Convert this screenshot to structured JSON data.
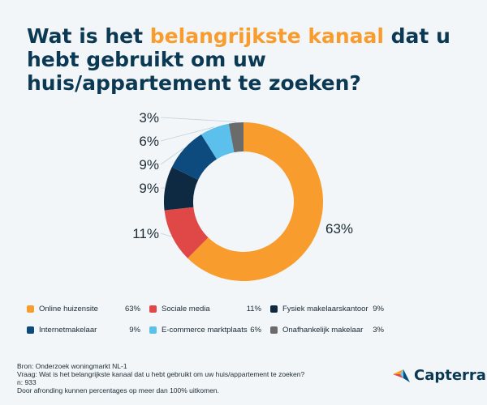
{
  "title": {
    "pre": "Wat is het ",
    "highlight": "belangrijkste kanaal",
    "post": " dat u hebt gebruikt om uw huis/appartement te zoeken?"
  },
  "colors": {
    "title": "#0b3954",
    "highlight": "#f89c2e",
    "label": "#1c2b36",
    "background": "#f2f6f8"
  },
  "chart_data": {
    "type": "pie",
    "donut": true,
    "title": "Wat is het belangrijkste kanaal dat u hebt gebruikt om uw huis/appartement te zoeken?",
    "categories": [
      "Online huizensite",
      "Sociale media",
      "Fysiek makelaarskantoor",
      "Internetmakelaar",
      "E-commerce marktplaats",
      "Onafhankelijk makelaar"
    ],
    "values": [
      63,
      11,
      9,
      9,
      6,
      3
    ],
    "labels": [
      "63%",
      "11%",
      "9%",
      "9%",
      "6%",
      "3%"
    ],
    "colors": [
      "#f89c2e",
      "#e04848",
      "#0e2a42",
      "#0d4a7e",
      "#5bc0eb",
      "#6b6b6b"
    ]
  },
  "legend": {
    "items": [
      {
        "label": "Online huizensite",
        "value": "63%",
        "color": "#f89c2e"
      },
      {
        "label": "Sociale media",
        "value": "11%",
        "color": "#e04848"
      },
      {
        "label": "Fysiek makelaarskantoor",
        "value": "9%",
        "color": "#0e2a42"
      },
      {
        "label": "Internetmakelaar",
        "value": "9%",
        "color": "#0d4a7e"
      },
      {
        "label": "E-commerce marktplaats",
        "value": "6%",
        "color": "#5bc0eb"
      },
      {
        "label": "Onafhankelijk makelaar",
        "value": "3%",
        "color": "#6b6b6b"
      }
    ]
  },
  "footer": {
    "source": "Bron: Onderzoek woningmarkt NL-1",
    "question": "Vraag: Wat is het belangrijkste kanaal dat u hebt gebruikt om uw huis/appartement te zoeken?",
    "n": "n: 933",
    "note": "Door afronding kunnen percentages op meer dan 100% uitkomen."
  },
  "logo": {
    "text": "Capterra",
    "icon": "capterra-logo-icon"
  }
}
